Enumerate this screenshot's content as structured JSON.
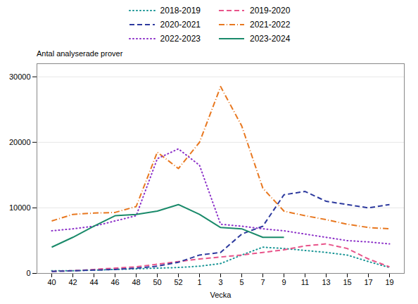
{
  "chart_data": {
    "type": "line",
    "xlabel": "Vecka",
    "ylabel": "Antal analyserade prover",
    "categories": [
      "40",
      "42",
      "44",
      "46",
      "48",
      "50",
      "52",
      "1",
      "3",
      "5",
      "7",
      "9",
      "11",
      "13",
      "15",
      "17",
      "19"
    ],
    "ylim": [
      0,
      32000
    ],
    "yticks": [
      0,
      10000,
      20000,
      30000
    ],
    "grid": true,
    "legend": "top",
    "series": [
      {
        "name": "2018-2019",
        "color": "#1a9696",
        "line_style": "dotted",
        "values": [
          400,
          400,
          500,
          600,
          700,
          800,
          900,
          1100,
          1500,
          2800,
          4000,
          3800,
          3500,
          3200,
          2800,
          1800,
          900
        ]
      },
      {
        "name": "2019-2020",
        "color": "#e8548a",
        "line_style": "dashed",
        "values": [
          300,
          400,
          600,
          800,
          1000,
          1400,
          1800,
          2200,
          2500,
          2800,
          3200,
          3600,
          4200,
          4500,
          3800,
          2200,
          1000
        ]
      },
      {
        "name": "2020-2021",
        "color": "#2d3a9e",
        "line_style": "dashed",
        "values": [
          300,
          400,
          500,
          600,
          800,
          1100,
          1700,
          2800,
          3200,
          6000,
          7200,
          12000,
          12500,
          11000,
          10500,
          10000,
          10500
        ]
      },
      {
        "name": "2021-2022",
        "color": "#e87820",
        "line_style": "dashdot",
        "values": [
          8000,
          9000,
          9200,
          9300,
          10200,
          18500,
          16000,
          20000,
          28500,
          22500,
          13000,
          9500,
          8800,
          8200,
          7500,
          7000,
          6800
        ]
      },
      {
        "name": "2022-2023",
        "color": "#8b2fc8",
        "line_style": "dotted",
        "values": [
          6500,
          6800,
          7200,
          8000,
          8800,
          17500,
          19000,
          16500,
          7500,
          7200,
          6800,
          6500,
          6000,
          5500,
          5000,
          4800,
          4500
        ]
      },
      {
        "name": "2023-2024",
        "color": "#1a8a6a",
        "line_style": "solid",
        "values": [
          4000,
          5500,
          7200,
          8800,
          9000,
          9500,
          10500,
          9000,
          7000,
          6800,
          5500,
          5500,
          null,
          null,
          null,
          null,
          null
        ]
      }
    ]
  }
}
